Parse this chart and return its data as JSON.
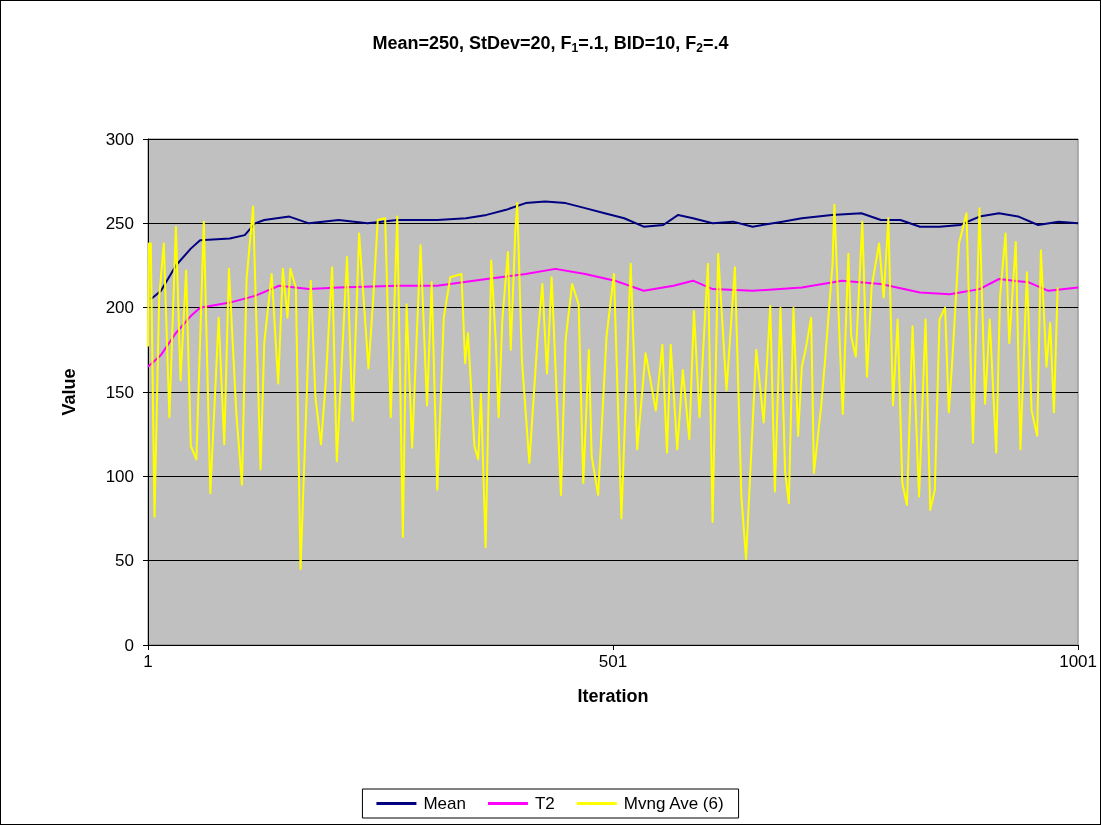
{
  "chart_data": {
    "type": "line",
    "title": "Mean=250, StDev=20, F$_{1}$=.1, BID=10, F$_{2}$=.4",
    "xlabel": "Iteration",
    "ylabel": "Value",
    "xlim": [
      1,
      1001
    ],
    "xticks": [
      1,
      501,
      1001
    ],
    "ylim": [
      0,
      300
    ],
    "yticks": [
      0,
      50,
      100,
      150,
      200,
      250,
      300
    ],
    "grid": "y",
    "legend": "bottom",
    "marker": "none",
    "line_style": "solid",
    "series": [
      {
        "name": "Mean",
        "color": "#000080",
        "x": [
          4,
          15,
          31,
          47,
          57,
          89,
          105,
          116,
          126,
          153,
          174,
          206,
          237,
          269,
          312,
          343,
          365,
          386,
          407,
          428,
          450,
          471,
          492,
          513,
          534,
          555,
          571,
          587,
          608,
          630,
          651,
          683,
          704,
          736,
          768,
          789,
          810,
          831,
          852,
          874,
          895,
          916,
          937,
          958,
          980,
          1001
        ],
        "values": [
          205,
          210,
          225,
          235,
          240,
          241,
          243,
          250,
          252,
          254,
          250,
          252,
          250,
          252,
          252,
          253,
          255,
          258,
          262,
          263,
          262,
          259,
          256,
          253,
          248,
          249,
          255,
          253,
          250,
          251,
          248,
          251,
          253,
          255,
          256,
          252,
          252,
          248,
          248,
          249,
          254,
          256,
          254,
          249,
          251,
          250
        ]
      },
      {
        "name": "T2",
        "color": "#ff00ff",
        "x": [
          1,
          15,
          31,
          47,
          57,
          89,
          116,
          142,
          174,
          206,
          269,
          312,
          365,
          407,
          439,
          471,
          503,
          534,
          566,
          587,
          608,
          651,
          704,
          747,
          789,
          831,
          863,
          895,
          916,
          948,
          969,
          1001
        ],
        "values": [
          165,
          172,
          185,
          195,
          200,
          203,
          207,
          213,
          211,
          212,
          213,
          213,
          217,
          220,
          223,
          220,
          216,
          210,
          213,
          216,
          211,
          210,
          212,
          216,
          214,
          209,
          208,
          211,
          217,
          215,
          210,
          212
        ]
      },
      {
        "name": "Mvng Ave (6)",
        "color": "#ffff00",
        "x": [
          1,
          2,
          4,
          8,
          13,
          18,
          24,
          31,
          36,
          42,
          47,
          53,
          61,
          68,
          77,
          83,
          88,
          96,
          102,
          107,
          114,
          122,
          126,
          134,
          141,
          146,
          151,
          154,
          160,
          165,
          176,
          181,
          187,
          192,
          199,
          204,
          215,
          221,
          228,
          238,
          243,
          248,
          256,
          262,
          269,
          275,
          279,
          285,
          294,
          301,
          306,
          312,
          319,
          326,
          338,
          342,
          345,
          352,
          356,
          359,
          364,
          368,
          370,
          375,
          378,
          382,
          388,
          391,
          396,
          398,
          403,
          411,
          420,
          425,
          430,
          435,
          445,
          450,
          457,
          464,
          469,
          475,
          478,
          485,
          494,
          502,
          510,
          520,
          527,
          536,
          547,
          554,
          559,
          563,
          570,
          576,
          583,
          588,
          594,
          603,
          608,
          614,
          623,
          632,
          639,
          644,
          655,
          663,
          670,
          675,
          681,
          686,
          690,
          695,
          700,
          704,
          708,
          714,
          717,
          725,
          729,
          737,
          739,
          745,
          748,
          754,
          757,
          762,
          769,
          774,
          779,
          787,
          792,
          797,
          802,
          807,
          812,
          817,
          823,
          830,
          837,
          842,
          847,
          852,
          858,
          862,
          866,
          873,
          881,
          888,
          895,
          901,
          906,
          913,
          917,
          923,
          927,
          934,
          939,
          946,
          951,
          957,
          961,
          967,
          971,
          975,
          979
        ],
        "values": [
          177,
          238,
          238,
          76,
          206,
          238,
          135,
          248,
          157,
          222,
          118,
          110,
          251,
          90,
          194,
          119,
          223,
          137,
          95,
          217,
          260,
          104,
          179,
          220,
          155,
          223,
          194,
          223,
          212,
          45,
          216,
          147,
          119,
          155,
          224,
          109,
          230,
          133,
          244,
          164,
          204,
          252,
          253,
          135,
          254,
          64,
          202,
          117,
          237,
          142,
          215,
          92,
          194,
          218,
          220,
          167,
          185,
          118,
          110,
          149,
          58,
          167,
          228,
          179,
          135,
          193,
          233,
          175,
          246,
          262,
          169,
          108,
          183,
          214,
          161,
          218,
          89,
          181,
          214,
          202,
          96,
          175,
          112,
          89,
          183,
          220,
          75,
          226,
          116,
          173,
          139,
          178,
          114,
          178,
          116,
          163,
          122,
          198,
          135,
          226,
          73,
          232,
          151,
          224,
          88,
          51,
          175,
          132,
          201,
          91,
          200,
          103,
          84,
          200,
          124,
          165,
          175,
          194,
          102,
          143,
          169,
          226,
          261,
          175,
          137,
          232,
          183,
          171,
          251,
          159,
          212,
          238,
          206,
          253,
          142,
          193,
          96,
          83,
          189,
          88,
          193,
          80,
          92,
          193,
          200,
          138,
          171,
          238,
          256,
          120,
          259,
          143,
          193,
          114,
          206,
          244,
          179,
          239,
          116,
          221,
          139,
          124,
          234,
          165,
          191,
          138,
          212
        ]
      }
    ]
  }
}
